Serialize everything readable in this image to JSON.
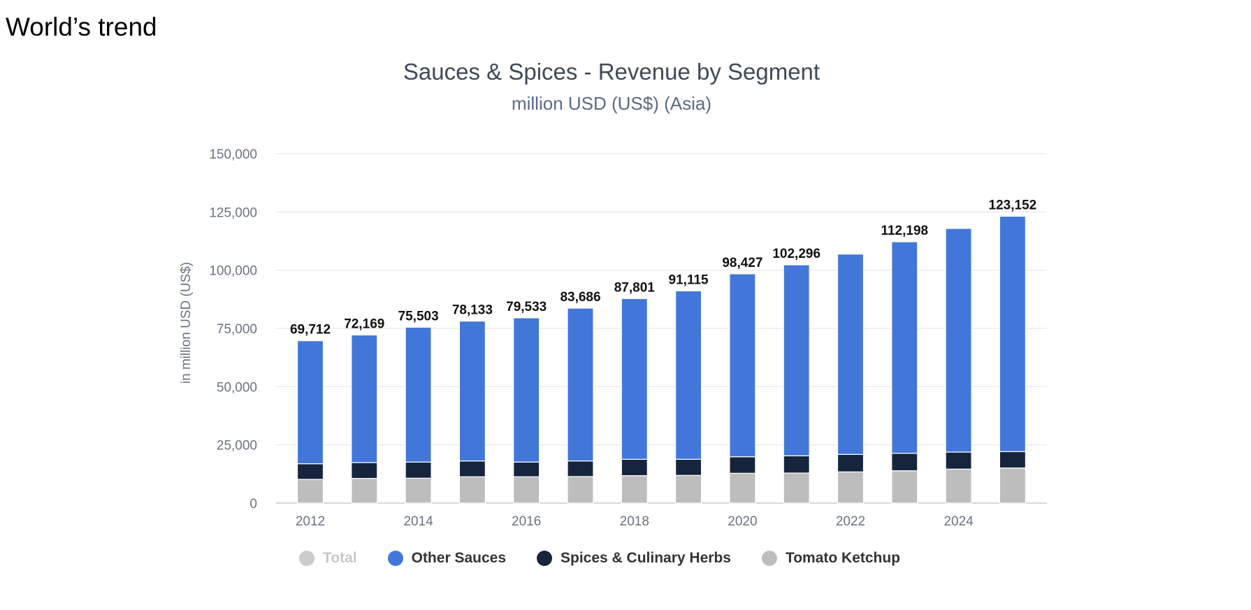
{
  "page": {
    "heading": "World’s trend"
  },
  "chart_data": {
    "type": "bar",
    "stacked": true,
    "title": "Sauces & Spices - Revenue by Segment",
    "subtitle": "million USD (US$) (Asia)",
    "ylabel": "in million USD (US$)",
    "xlabel": "",
    "ylim": [
      0,
      150000
    ],
    "yticks": [
      0,
      25000,
      50000,
      75000,
      100000,
      125000,
      150000
    ],
    "ytick_labels": [
      "0",
      "25,000",
      "50,000",
      "75,000",
      "100,000",
      "125,000",
      "150,000"
    ],
    "categories": [
      "2012",
      "2013",
      "2014",
      "2015",
      "2016",
      "2017",
      "2018",
      "2019",
      "2020",
      "2021",
      "2022",
      "2023",
      "2024",
      "2025"
    ],
    "xtick_labels": [
      "2012",
      "",
      "2014",
      "",
      "2016",
      "",
      "2018",
      "",
      "2020",
      "",
      "2022",
      "",
      "2024",
      ""
    ],
    "grid": true,
    "legend_position": "bottom",
    "series": [
      {
        "name": "Tomato Ketchup",
        "color": "#bdbdbd",
        "values": [
          10200,
          10600,
          10700,
          11300,
          11300,
          11400,
          11800,
          11900,
          12800,
          12900,
          13400,
          13900,
          14600,
          15100
        ]
      },
      {
        "name": "Spices & Culinary Herbs",
        "color": "#16253d",
        "values": [
          6700,
          6800,
          6900,
          6800,
          6300,
          6700,
          7000,
          6900,
          7100,
          7400,
          7500,
          7500,
          7300,
          7000
        ]
      },
      {
        "name": "Other Sauces",
        "color": "#4277d9",
        "values": [
          52812,
          54769,
          57903,
          60033,
          61933,
          65586,
          69001,
          72315,
          78527,
          81996,
          86000,
          90798,
          96000,
          101052
        ]
      }
    ],
    "totals": [
      69712,
      72169,
      75503,
      78133,
      79533,
      83686,
      87801,
      91115,
      98427,
      102296,
      null,
      112198,
      null,
      123152
    ],
    "total_labels": [
      "69,712",
      "72,169",
      "75,503",
      "78,133",
      "79,533",
      "83,686",
      "87,801",
      "91,115",
      "98,427",
      "102,296",
      "",
      "112,198",
      "",
      "123,152"
    ],
    "legend": [
      {
        "name": "Total",
        "color": "#cccccc",
        "active": false
      },
      {
        "name": "Other Sauces",
        "color": "#4277d9",
        "active": true
      },
      {
        "name": "Spices & Culinary Herbs",
        "color": "#16253d",
        "active": true
      },
      {
        "name": "Tomato Ketchup",
        "color": "#bdbdbd",
        "active": true
      }
    ]
  }
}
